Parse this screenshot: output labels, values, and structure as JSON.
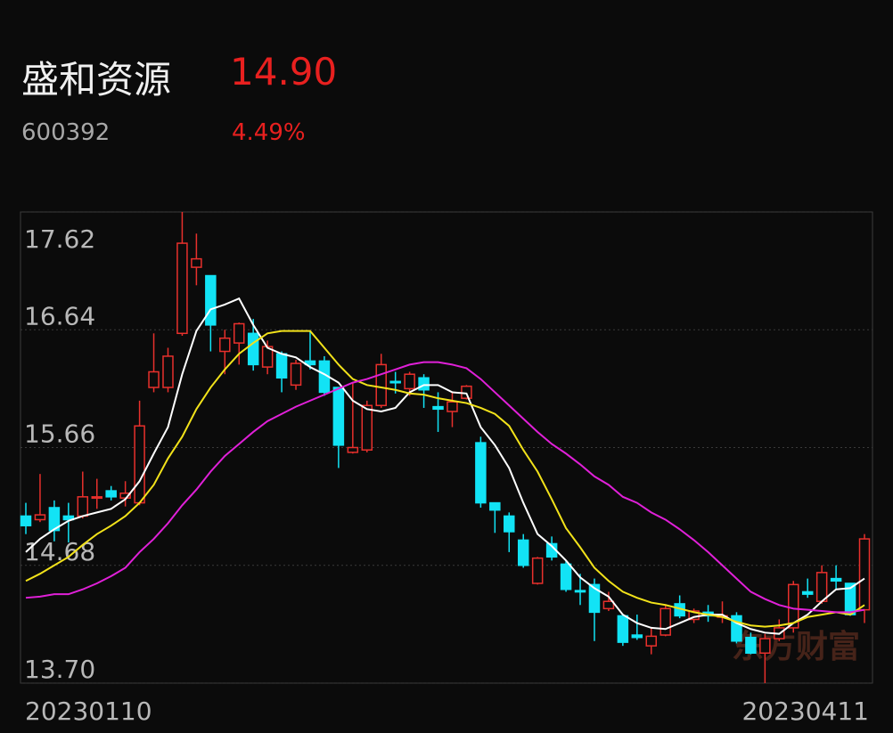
{
  "header": {
    "name": "盛和资源",
    "price": "14.90",
    "code": "600392",
    "change": "4.49%"
  },
  "chart_data": {
    "type": "candlestick",
    "watermark": "东方财富",
    "categories": [
      "20230110",
      null,
      null,
      null,
      null,
      null,
      null,
      null,
      null,
      null,
      null,
      null,
      null,
      null,
      null,
      null,
      null,
      null,
      null,
      null,
      null,
      null,
      null,
      null,
      null,
      null,
      null,
      null,
      null,
      null,
      null,
      null,
      null,
      null,
      null,
      null,
      null,
      null,
      null,
      null,
      null,
      null,
      null,
      null,
      null,
      null,
      null,
      null,
      null,
      null,
      null,
      null,
      null,
      null,
      null,
      null,
      null,
      null,
      null,
      "20230411"
    ],
    "ylim": [
      13.7,
      17.62
    ],
    "yticks": [
      17.62,
      16.64,
      15.66,
      14.68,
      {
        "value": 13.7,
        "label": "13.70"
      }
    ],
    "grid": true,
    "up_color": "#e8302c",
    "down_color": "#12e3f5",
    "open": [
      15.09,
      15.06,
      15.16,
      15.09,
      15.09,
      15.24,
      15.3,
      15.24,
      15.2,
      16.16,
      16.16,
      16.61,
      17.16,
      17.09,
      16.46,
      16.53,
      16.61,
      16.33,
      16.44,
      16.18,
      16.38,
      16.38,
      16.16,
      15.62,
      15.64,
      16.01,
      16.21,
      16.15,
      16.24,
      16.0,
      15.96,
      16.07,
      15.7,
      15.2,
      15.09,
      14.89,
      14.53,
      14.86,
      14.69,
      14.47,
      14.52,
      14.32,
      14.26,
      14.1,
      14.01,
      14.1,
      14.36,
      14.23,
      14.29,
      14.25,
      14.26,
      14.08,
      13.95,
      14.07,
      14.16,
      14.46,
      14.38,
      14.57,
      14.53,
      14.31
    ],
    "high": [
      15.2,
      15.44,
      15.22,
      15.2,
      15.46,
      15.4,
      15.34,
      15.38,
      16.05,
      16.61,
      16.49,
      17.62,
      17.44,
      17.09,
      16.64,
      16.7,
      16.73,
      16.55,
      16.46,
      16.39,
      16.63,
      16.42,
      16.16,
      16.2,
      16.05,
      16.44,
      16.29,
      16.29,
      16.27,
      16.12,
      16.12,
      16.18,
      15.75,
      15.2,
      15.12,
      14.94,
      14.75,
      14.92,
      14.72,
      14.61,
      14.57,
      14.46,
      14.27,
      14.27,
      14.16,
      14.35,
      14.43,
      14.32,
      14.35,
      14.38,
      14.29,
      14.12,
      14.11,
      14.23,
      14.55,
      14.57,
      14.68,
      14.68,
      14.53,
      14.94
    ],
    "low": [
      14.94,
      15.04,
      14.88,
      14.87,
      15.07,
      15.15,
      15.22,
      15.17,
      15.18,
      16.12,
      16.12,
      16.59,
      17.01,
      16.46,
      16.27,
      16.35,
      16.3,
      16.27,
      16.12,
      16.14,
      16.31,
      16.09,
      15.49,
      15.61,
      15.62,
      15.99,
      16.11,
      16.09,
      15.99,
      15.79,
      15.83,
      16.06,
      15.16,
      14.95,
      14.79,
      14.66,
      14.52,
      14.72,
      14.46,
      14.35,
      14.05,
      14.3,
      14.01,
      14.06,
      13.94,
      14.09,
      14.24,
      14.2,
      14.21,
      14.2,
      14.03,
      13.94,
      13.7,
      14.05,
      14.12,
      14.41,
      14.36,
      14.48,
      14.26,
      14.2
    ],
    "close": [
      15.01,
      15.1,
      14.97,
      15.06,
      15.25,
      15.25,
      15.25,
      15.28,
      15.84,
      16.29,
      16.42,
      17.36,
      17.23,
      16.68,
      16.57,
      16.69,
      16.35,
      16.5,
      16.24,
      16.36,
      16.35,
      16.12,
      15.68,
      15.66,
      16.01,
      16.35,
      16.2,
      16.27,
      16.14,
      15.98,
      16.04,
      16.17,
      15.2,
      15.14,
      14.96,
      14.68,
      14.74,
      14.75,
      14.48,
      14.46,
      14.29,
      14.38,
      14.04,
      14.08,
      14.09,
      14.32,
      14.26,
      14.3,
      14.26,
      14.26,
      14.05,
      13.95,
      14.07,
      14.16,
      14.52,
      14.44,
      14.62,
      14.55,
      14.27,
      14.9
    ],
    "lines": [
      {
        "color": "#ffffff",
        "values": [
          14.79,
          14.9,
          14.98,
          15.05,
          15.09,
          15.12,
          15.15,
          15.23,
          15.38,
          15.61,
          15.83,
          16.27,
          16.63,
          16.81,
          16.85,
          16.9,
          16.68,
          16.49,
          16.44,
          16.41,
          16.33,
          16.27,
          16.2,
          16.05,
          15.98,
          15.96,
          15.99,
          16.12,
          16.18,
          16.18,
          16.12,
          16.11,
          15.83,
          15.68,
          15.49,
          15.2,
          14.94,
          14.84,
          14.72,
          14.58,
          14.49,
          14.42,
          14.27,
          14.2,
          14.16,
          14.15,
          14.2,
          14.25,
          14.27,
          14.27,
          14.2,
          14.15,
          14.12,
          14.11,
          14.2,
          14.27,
          14.38,
          14.48,
          14.49,
          14.57
        ]
      },
      {
        "color": "#f2e21a",
        "values": [
          14.55,
          14.61,
          14.68,
          14.75,
          14.85,
          14.94,
          15.01,
          15.09,
          15.2,
          15.35,
          15.57,
          15.75,
          15.98,
          16.16,
          16.31,
          16.44,
          16.53,
          16.61,
          16.63,
          16.63,
          16.63,
          16.49,
          16.35,
          16.23,
          16.18,
          16.16,
          16.14,
          16.11,
          16.1,
          16.07,
          16.05,
          16.03,
          15.99,
          15.94,
          15.84,
          15.64,
          15.46,
          15.23,
          14.99,
          14.83,
          14.66,
          14.55,
          14.46,
          14.41,
          14.37,
          14.35,
          14.32,
          14.29,
          14.27,
          14.25,
          14.21,
          14.18,
          14.17,
          14.18,
          14.2,
          14.25,
          14.27,
          14.29,
          14.27,
          14.35
        ]
      },
      {
        "color": "#e020d8",
        "values": [
          14.41,
          14.42,
          14.44,
          14.44,
          14.48,
          14.53,
          14.59,
          14.66,
          14.79,
          14.9,
          15.03,
          15.18,
          15.31,
          15.46,
          15.59,
          15.69,
          15.79,
          15.88,
          15.94,
          16.0,
          16.05,
          16.1,
          16.15,
          16.2,
          16.23,
          16.27,
          16.31,
          16.35,
          16.37,
          16.37,
          16.35,
          16.32,
          16.23,
          16.12,
          16.01,
          15.9,
          15.79,
          15.69,
          15.61,
          15.52,
          15.42,
          15.35,
          15.25,
          15.2,
          15.12,
          15.06,
          14.98,
          14.89,
          14.79,
          14.68,
          14.57,
          14.46,
          14.4,
          14.35,
          14.32,
          14.31,
          14.3,
          14.29,
          14.29,
          14.31
        ]
      }
    ]
  }
}
